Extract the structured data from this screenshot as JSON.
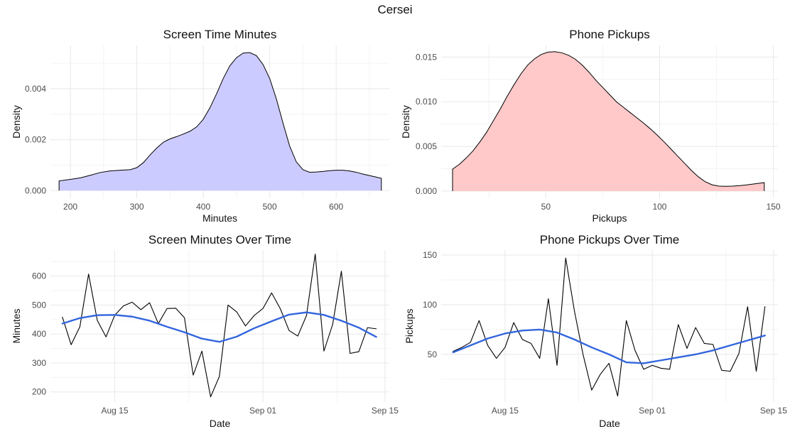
{
  "figure": {
    "title": "Cersei"
  },
  "colors": {
    "screen_fill": "#cccbff",
    "pickups_fill": "#ffc9c9",
    "smooth_line": "#3366dd",
    "raw_line": "#000000",
    "grid_major": "#e8e8e8",
    "grid_minor": "#f3f3f3"
  },
  "chart_data": [
    {
      "id": "screen-density",
      "type": "area",
      "title": "Screen Time Minutes",
      "xlabel": "Minutes",
      "ylabel": "Density",
      "xlim": [
        170,
        680
      ],
      "ylim": [
        -0.0003,
        0.0057
      ],
      "xticks": [
        200,
        300,
        400,
        500,
        600
      ],
      "xtick_labels": [
        "200",
        "300",
        "400",
        "500",
        "600"
      ],
      "yticks": [
        0,
        0.002,
        0.004
      ],
      "ytick_labels": [
        "0.000",
        "0.002",
        "0.004"
      ],
      "x": [
        183,
        200,
        215,
        230,
        245,
        260,
        275,
        290,
        300,
        310,
        320,
        330,
        340,
        350,
        360,
        370,
        380,
        390,
        400,
        410,
        420,
        430,
        440,
        450,
        460,
        470,
        480,
        490,
        500,
        510,
        520,
        530,
        540,
        550,
        560,
        570,
        580,
        590,
        600,
        610,
        620,
        630,
        640,
        650,
        660,
        668
      ],
      "y": [
        0.00038,
        0.00044,
        0.0005,
        0.0006,
        0.00071,
        0.00077,
        0.0008,
        0.00082,
        0.0009,
        0.0011,
        0.0014,
        0.00167,
        0.0019,
        0.00203,
        0.00212,
        0.00222,
        0.00233,
        0.0025,
        0.0028,
        0.00325,
        0.0038,
        0.0044,
        0.0049,
        0.00522,
        0.0054,
        0.00542,
        0.0053,
        0.00495,
        0.0044,
        0.0036,
        0.00265,
        0.00175,
        0.00113,
        0.00082,
        0.00072,
        0.00073,
        0.00075,
        0.00078,
        0.0008,
        0.0008,
        0.00077,
        0.00072,
        0.00065,
        0.00059,
        0.00053,
        0.00048
      ]
    },
    {
      "id": "pickups-density",
      "type": "area",
      "title": "Phone Pickups",
      "xlabel": "Pickups",
      "ylabel": "Density",
      "xlim": [
        4,
        152
      ],
      "ylim": [
        -0.0008,
        0.0163
      ],
      "xticks": [
        50,
        100,
        150
      ],
      "xtick_labels": [
        "50",
        "100",
        "150"
      ],
      "yticks": [
        0,
        0.005,
        0.01,
        0.015
      ],
      "ytick_labels": [
        "0.000",
        "0.005",
        "0.010",
        "0.015"
      ],
      "x": [
        9,
        12,
        15,
        18,
        21,
        24,
        27,
        30,
        33,
        36,
        39,
        42,
        45,
        48,
        51,
        54,
        57,
        60,
        63,
        66,
        69,
        72,
        75,
        78,
        81,
        84,
        87,
        90,
        93,
        96,
        99,
        102,
        105,
        108,
        111,
        114,
        117,
        120,
        123,
        126,
        129,
        132,
        135,
        138,
        141,
        144,
        146
      ],
      "y": [
        0.00245,
        0.003,
        0.0037,
        0.0045,
        0.0055,
        0.0066,
        0.0079,
        0.0092,
        0.0106,
        0.0119,
        0.0131,
        0.0141,
        0.0148,
        0.0153,
        0.01555,
        0.0156,
        0.01548,
        0.0152,
        0.01475,
        0.0141,
        0.0133,
        0.0124,
        0.0116,
        0.0108,
        0.01,
        0.0094,
        0.0088,
        0.0082,
        0.0076,
        0.00695,
        0.00625,
        0.0055,
        0.0047,
        0.0039,
        0.0031,
        0.0023,
        0.0016,
        0.00105,
        0.0007,
        0.00055,
        0.00053,
        0.00055,
        0.0006,
        0.00068,
        0.00078,
        0.00088,
        0.00094
      ]
    },
    {
      "id": "screen-over-time",
      "type": "line",
      "title": "Screen Minutes Over Time",
      "xlabel": "Date",
      "ylabel": "Minutes",
      "xlim": [
        "2024-08-07T15:00",
        "2024-09-15T12:00"
      ],
      "ylim": [
        165,
        690
      ],
      "xticks": [
        "2024-08-15",
        "2024-09-01",
        "2024-09-15"
      ],
      "xtick_labels": [
        "Aug 15",
        "Sep 01",
        "Sep 15"
      ],
      "yticks": [
        200,
        300,
        400,
        500,
        600
      ],
      "ytick_labels": [
        "200",
        "300",
        "400",
        "500",
        "600"
      ],
      "series": [
        {
          "role": "raw",
          "x": [
            "2024-08-09",
            "2024-08-10",
            "2024-08-11",
            "2024-08-12",
            "2024-08-13",
            "2024-08-14",
            "2024-08-15",
            "2024-08-16",
            "2024-08-17",
            "2024-08-18",
            "2024-08-19",
            "2024-08-20",
            "2024-08-21",
            "2024-08-22",
            "2024-08-23",
            "2024-08-24",
            "2024-08-25",
            "2024-08-26",
            "2024-08-27",
            "2024-08-28",
            "2024-08-29",
            "2024-08-30",
            "2024-08-31",
            "2024-09-01",
            "2024-09-02",
            "2024-09-03",
            "2024-09-04",
            "2024-09-05",
            "2024-09-06",
            "2024-09-07",
            "2024-09-08",
            "2024-09-09",
            "2024-09-10",
            "2024-09-11",
            "2024-09-12",
            "2024-09-13",
            "2024-09-14"
          ],
          "y": [
            458,
            363,
            425,
            607,
            447,
            390,
            465,
            497,
            510,
            484,
            508,
            436,
            488,
            489,
            456,
            258,
            341,
            183,
            253,
            500,
            476,
            428,
            464,
            488,
            542,
            487,
            412,
            393,
            464,
            676,
            341,
            433,
            617,
            333,
            339,
            422,
            418
          ]
        },
        {
          "role": "smooth",
          "x": [
            "2024-08-09",
            "2024-08-11",
            "2024-08-13",
            "2024-08-15",
            "2024-08-17",
            "2024-08-19",
            "2024-08-21",
            "2024-08-23",
            "2024-08-25",
            "2024-08-27",
            "2024-08-29",
            "2024-08-31",
            "2024-09-02",
            "2024-09-04",
            "2024-09-06",
            "2024-09-08",
            "2024-09-10",
            "2024-09-12",
            "2024-09-14"
          ],
          "y": [
            436,
            455,
            465,
            466,
            460,
            446,
            425,
            406,
            384,
            373,
            391,
            420,
            444,
            467,
            475,
            466,
            446,
            422,
            390
          ]
        }
      ]
    },
    {
      "id": "pickups-over-time",
      "type": "line",
      "title": "Phone Pickups Over Time",
      "xlabel": "Date",
      "ylabel": "Pickups",
      "xlim": [
        "2024-08-07T15:00",
        "2024-09-15T12:00"
      ],
      "ylim": [
        2,
        155
      ],
      "xticks": [
        "2024-08-15",
        "2024-09-01",
        "2024-09-15"
      ],
      "xtick_labels": [
        "Aug 15",
        "Sep 01",
        "Sep 15"
      ],
      "yticks": [
        50,
        100,
        150
      ],
      "ytick_labels": [
        "50",
        "100",
        "150"
      ],
      "series": [
        {
          "role": "raw",
          "x": [
            "2024-08-09",
            "2024-08-10",
            "2024-08-11",
            "2024-08-12",
            "2024-08-13",
            "2024-08-14",
            "2024-08-15",
            "2024-08-16",
            "2024-08-17",
            "2024-08-18",
            "2024-08-19",
            "2024-08-20",
            "2024-08-21",
            "2024-08-22",
            "2024-08-23",
            "2024-08-24",
            "2024-08-25",
            "2024-08-26",
            "2024-08-27",
            "2024-08-28",
            "2024-08-29",
            "2024-08-30",
            "2024-08-31",
            "2024-09-01",
            "2024-09-02",
            "2024-09-03",
            "2024-09-04",
            "2024-09-05",
            "2024-09-06",
            "2024-09-07",
            "2024-09-08",
            "2024-09-09",
            "2024-09-10",
            "2024-09-11",
            "2024-09-12",
            "2024-09-13",
            "2024-09-14"
          ],
          "y": [
            53,
            57,
            62,
            84,
            59,
            46,
            57,
            82,
            65,
            61,
            46,
            106,
            39,
            147,
            94,
            50,
            14,
            30,
            41,
            8,
            84,
            54,
            35,
            39,
            36,
            35,
            80,
            56,
            77,
            61,
            60,
            34,
            33,
            51,
            98,
            33,
            98
          ]
        },
        {
          "role": "smooth",
          "x": [
            "2024-08-09",
            "2024-08-11",
            "2024-08-13",
            "2024-08-15",
            "2024-08-17",
            "2024-08-19",
            "2024-08-21",
            "2024-08-23",
            "2024-08-25",
            "2024-08-27",
            "2024-08-29",
            "2024-08-31",
            "2024-09-02",
            "2024-09-04",
            "2024-09-06",
            "2024-09-08",
            "2024-09-10",
            "2024-09-12",
            "2024-09-14"
          ],
          "y": [
            52,
            59,
            66,
            71,
            74,
            75,
            72,
            65,
            57,
            50,
            42,
            41,
            44,
            47,
            50,
            54,
            59,
            64,
            69
          ]
        }
      ]
    }
  ]
}
